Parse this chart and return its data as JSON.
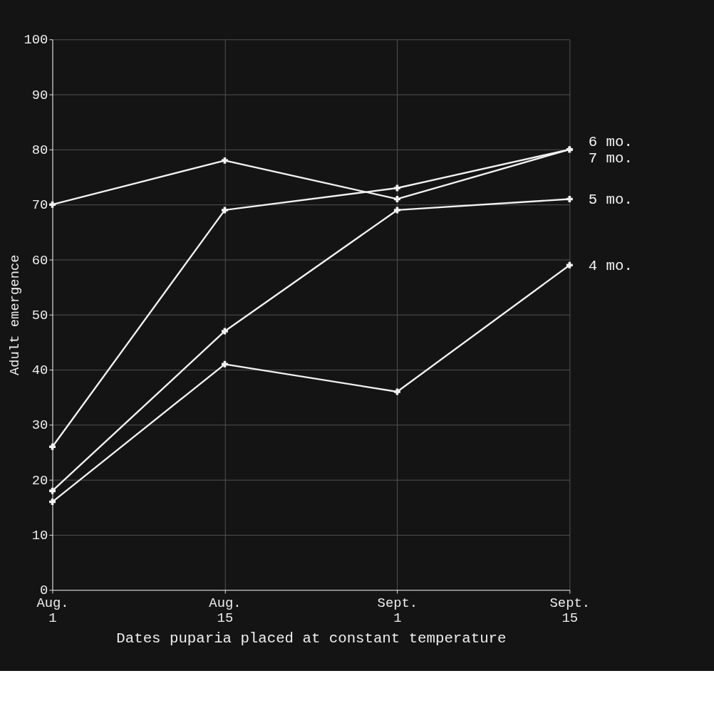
{
  "chart_data": {
    "type": "line",
    "xlabel": "Dates puparia placed at constant temperature",
    "ylabel": "Adult emergence",
    "categories": [
      "Aug. 1",
      "Aug. 15",
      "Sept. 1",
      "Sept. 15"
    ],
    "series": [
      {
        "name": "4 mo.",
        "color": "#f2f2f2",
        "values": [
          16,
          41,
          36,
          59
        ]
      },
      {
        "name": "5 mo.",
        "color": "#f2f2f2",
        "values": [
          18,
          47,
          69,
          71
        ]
      },
      {
        "name": "6 mo.",
        "color": "#f2f2f2",
        "values": [
          26,
          69,
          73,
          80
        ]
      },
      {
        "name": "7 mo.",
        "color": "#f2f2f2",
        "values": [
          70,
          78,
          71,
          80
        ]
      }
    ],
    "ylim": [
      0,
      100
    ],
    "yticks": [
      0,
      10,
      20,
      30,
      40,
      50,
      60,
      70,
      80,
      90,
      100
    ],
    "grid": true,
    "marker": "cross",
    "line_style": "solid"
  }
}
